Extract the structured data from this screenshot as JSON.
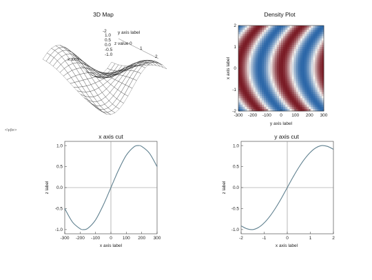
{
  "marker_text": "<\\p|br>",
  "colors": {
    "low": "#7a1b25",
    "mid": "#f2f0ee",
    "high": "#2c67a8",
    "curve": "#5e7f8e"
  },
  "chart_data": [
    {
      "type": "surface",
      "title": "3D Map",
      "xlabel": "x axis",
      "ylabel": "y axis label",
      "zlabel": "z value",
      "y_ticks": [
        "-2",
        "1",
        "2"
      ],
      "z_ticks": [
        "1.0",
        "0.5",
        "0.0",
        "-0.5",
        "-1.0"
      ],
      "legend_value": "0",
      "function": "sin(pi*x/360)*sin(pi*y/4)"
    },
    {
      "type": "heatmap",
      "title": "Density Plot",
      "xlabel": "y axis label",
      "ylabel": "x axis label",
      "xlim": [
        -300,
        300
      ],
      "ylim": [
        -2,
        2
      ],
      "x_ticks": [
        -300,
        -200,
        -100,
        0,
        100,
        200,
        300
      ],
      "y_ticks": [
        -2,
        -1,
        0,
        1,
        2
      ]
    },
    {
      "type": "line",
      "title": "x axis cut",
      "xlabel": "x axis label",
      "ylabel": "z label",
      "xlim": [
        -300,
        300
      ],
      "ylim": [
        -1.1,
        1.1
      ],
      "x_ticks": [
        -300,
        -200,
        -100,
        0,
        100,
        200,
        300
      ],
      "y_ticks": [
        -1.0,
        -0.5,
        0.0,
        0.5,
        1.0
      ],
      "x": [
        -300,
        -250,
        -200,
        -180,
        -150,
        -100,
        -50,
        0,
        50,
        100,
        150,
        180,
        200,
        250,
        300
      ],
      "y": [
        -0.5,
        -0.82,
        -0.98,
        -1.0,
        -0.97,
        -0.77,
        -0.42,
        0.0,
        0.42,
        0.77,
        0.97,
        1.0,
        0.98,
        0.82,
        0.5
      ]
    },
    {
      "type": "line",
      "title": "y axis cut",
      "xlabel": "x axis label",
      "ylabel": "z label",
      "xlim": [
        -2,
        2
      ],
      "ylim": [
        -1.1,
        1.1
      ],
      "x_ticks": [
        -2,
        -1,
        0,
        1,
        2
      ],
      "y_ticks": [
        -1.0,
        -0.5,
        0.0,
        0.5,
        1.0
      ],
      "x": [
        -2.0,
        -1.75,
        -1.5,
        -1.25,
        -1.0,
        -0.75,
        -0.5,
        -0.25,
        0.0,
        0.25,
        0.5,
        0.75,
        1.0,
        1.25,
        1.5,
        1.75,
        2.0
      ],
      "y": [
        -0.91,
        -0.98,
        -1.0,
        -0.95,
        -0.84,
        -0.68,
        -0.48,
        -0.25,
        0.0,
        0.25,
        0.48,
        0.68,
        0.84,
        0.95,
        1.0,
        0.98,
        0.91
      ]
    }
  ]
}
